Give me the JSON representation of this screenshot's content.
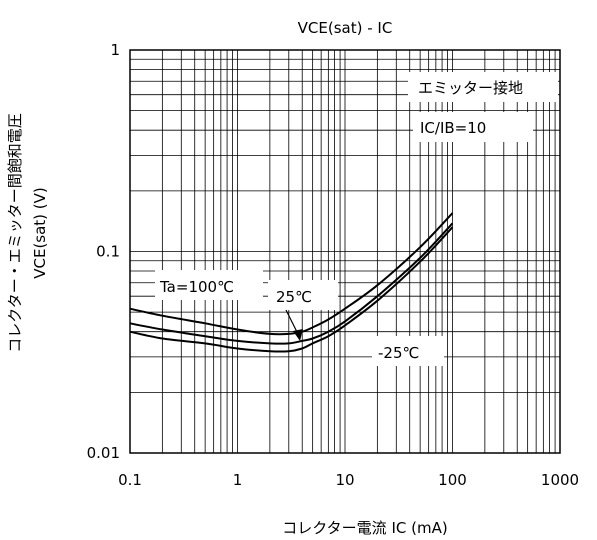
{
  "chart_data": {
    "type": "line",
    "title": "VCE(sat) - IC",
    "xlabel": "コレクター電流 IC (mA)",
    "ylabel_line1": "コレクター・エミッター間飽和電圧",
    "ylabel_line2": "VCE(sat) (V)",
    "xscale": "log",
    "yscale": "log",
    "xlim": [
      0.1,
      1000
    ],
    "ylim": [
      0.01,
      1
    ],
    "grid": true,
    "x_ticks": [
      "0.1",
      "1",
      "10",
      "100",
      "1000"
    ],
    "y_ticks": [
      "1",
      "0.1",
      "0.01"
    ],
    "annotations": [
      "エミッター接地",
      "IC/IB=10"
    ],
    "series": [
      {
        "name": "Ta=100℃",
        "x": [
          0.1,
          0.2,
          0.5,
          1,
          2,
          3,
          4,
          5,
          7,
          10,
          20,
          50,
          100
        ],
        "y": [
          0.052,
          0.048,
          0.044,
          0.041,
          0.039,
          0.039,
          0.04,
          0.042,
          0.046,
          0.052,
          0.068,
          0.105,
          0.155
        ]
      },
      {
        "name": "25℃",
        "x": [
          0.1,
          0.2,
          0.5,
          1,
          2,
          3,
          4,
          5,
          7,
          10,
          20,
          50,
          100
        ],
        "y": [
          0.044,
          0.041,
          0.038,
          0.036,
          0.035,
          0.035,
          0.036,
          0.037,
          0.04,
          0.045,
          0.06,
          0.093,
          0.138
        ]
      },
      {
        "name": "-25℃",
        "x": [
          0.1,
          0.2,
          0.5,
          1,
          2,
          3,
          4,
          5,
          7,
          10,
          20,
          50,
          100
        ],
        "y": [
          0.04,
          0.037,
          0.035,
          0.033,
          0.032,
          0.032,
          0.033,
          0.035,
          0.038,
          0.043,
          0.057,
          0.089,
          0.132
        ]
      }
    ]
  }
}
